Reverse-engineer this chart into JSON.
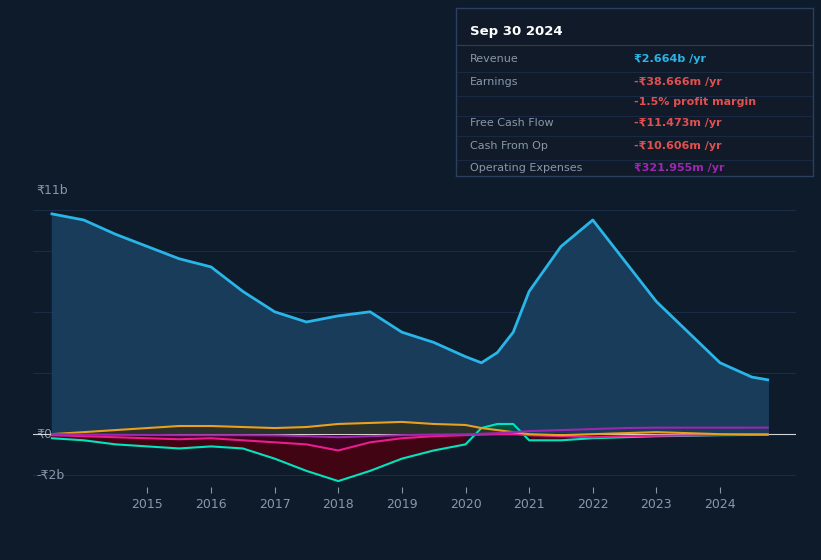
{
  "bg_color": "#0d1b2a",
  "plot_bg": "#0d1b2a",
  "grid_color": "#1e3050",
  "revenue_color": "#29b5e8",
  "earnings_color": "#00e5c0",
  "fcf_color": "#e91e8c",
  "cashop_color": "#e8a020",
  "opex_color": "#9c27b0",
  "revenue_fill": "#1a4060",
  "xticks": [
    2015,
    2016,
    2017,
    2018,
    2019,
    2020,
    2021,
    2022,
    2023,
    2024
  ],
  "ytick_labels": [
    "-₹2b",
    "₹0",
    "₹11b"
  ],
  "legend_items": [
    "Revenue",
    "Earnings",
    "Free Cash Flow",
    "Cash From Op",
    "Operating Expenses"
  ],
  "legend_colors": [
    "#29b5e8",
    "#00e5c0",
    "#e91e8c",
    "#e8a020",
    "#9c27b0"
  ],
  "x": [
    2013.5,
    2014,
    2014.5,
    2015,
    2015.5,
    2016,
    2016.5,
    2017,
    2017.5,
    2018,
    2018.5,
    2019,
    2019.5,
    2020,
    2020.25,
    2020.5,
    2020.75,
    2021,
    2021.5,
    2022,
    2022.5,
    2023,
    2023.5,
    2024,
    2024.5,
    2024.75
  ],
  "revenue": [
    10800000000,
    10500000000,
    9800000000,
    9200000000,
    8600000000,
    8200000000,
    7000000000,
    6000000000,
    5500000000,
    5800000000,
    6000000000,
    5000000000,
    4500000000,
    3800000000,
    3500000000,
    4000000000,
    5000000000,
    7000000000,
    9200000000,
    10500000000,
    8500000000,
    6500000000,
    5000000000,
    3500000000,
    2800000000,
    2664000000
  ],
  "earnings": [
    -200000000,
    -300000000,
    -500000000,
    -600000000,
    -700000000,
    -600000000,
    -700000000,
    -1200000000,
    -1800000000,
    -2300000000,
    -1800000000,
    -1200000000,
    -800000000,
    -500000000,
    300000000,
    500000000,
    500000000,
    -300000000,
    -300000000,
    -200000000,
    -150000000,
    -100000000,
    -80000000,
    -50000000,
    -40000000,
    -38666000
  ],
  "fcf": [
    -50000000,
    -100000000,
    -150000000,
    -200000000,
    -250000000,
    -200000000,
    -300000000,
    -400000000,
    -500000000,
    -800000000,
    -400000000,
    -200000000,
    -100000000,
    -50000000,
    -20000000,
    10000000,
    10000000,
    -50000000,
    -100000000,
    -150000000,
    -100000000,
    -80000000,
    -60000000,
    -40000000,
    -12000000,
    -11473000
  ],
  "cashfromop": [
    0,
    100000000,
    200000000,
    300000000,
    400000000,
    400000000,
    350000000,
    300000000,
    350000000,
    500000000,
    550000000,
    600000000,
    500000000,
    450000000,
    300000000,
    200000000,
    100000000,
    0,
    -50000000,
    0,
    50000000,
    100000000,
    50000000,
    0,
    -10000000,
    -10606000
  ],
  "opex": [
    0,
    -20000000,
    -30000000,
    -40000000,
    -50000000,
    -50000000,
    -50000000,
    -60000000,
    -100000000,
    -150000000,
    -100000000,
    -50000000,
    -20000000,
    -10000000,
    20000000,
    50000000,
    100000000,
    150000000,
    200000000,
    250000000,
    300000000,
    320000000,
    320000000,
    320000000,
    321955000,
    321955000
  ],
  "tooltip": {
    "title": "Sep 30 2024",
    "rows": [
      {
        "label": "Revenue",
        "value": "₹2.664b /yr",
        "value_color": "#29b5e8"
      },
      {
        "label": "Earnings",
        "value": "-₹38.666m /yr",
        "value_color": "#e05050"
      },
      {
        "label": "",
        "value": "-1.5% profit margin",
        "value_color": "#e05050"
      },
      {
        "label": "Free Cash Flow",
        "value": "-₹11.473m /yr",
        "value_color": "#e05050"
      },
      {
        "label": "Cash From Op",
        "value": "-₹10.606m /yr",
        "value_color": "#e05050"
      },
      {
        "label": "Operating Expenses",
        "value": "₹321.955m /yr",
        "value_color": "#9c27b0"
      }
    ]
  }
}
